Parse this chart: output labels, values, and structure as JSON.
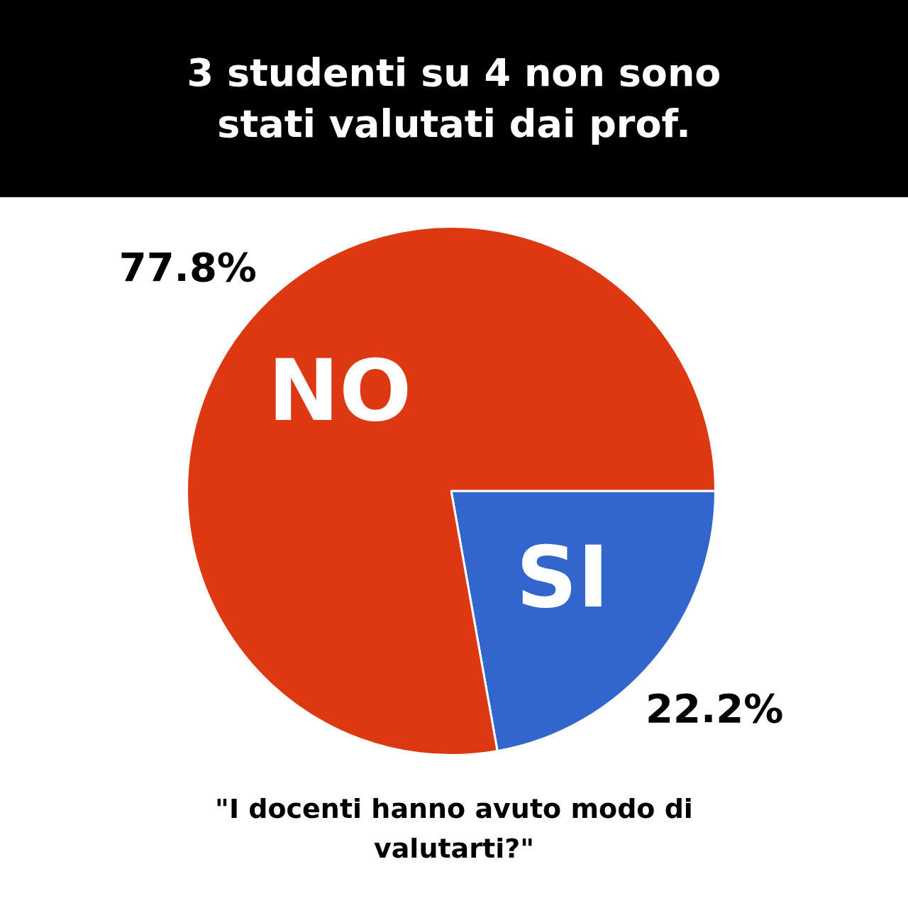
{
  "chart_data": {
    "type": "pie",
    "title": "3 studenti su 4 non sono stati valutati dai prof.",
    "categories": [
      "SI",
      "NO"
    ],
    "values": [
      22.2,
      77.8
    ],
    "colors": [
      "#3366cc",
      "#dc3912"
    ],
    "value_labels": [
      "22.2%",
      "77.8%"
    ],
    "legend": false,
    "annotations": [
      "\"I docenti hanno avuto modo di valutarti?\""
    ]
  }
}
